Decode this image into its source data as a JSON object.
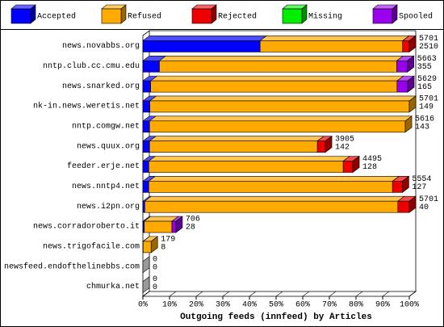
{
  "chart_data": {
    "type": "bar",
    "orientation": "horizontal",
    "stacked": true,
    "title": "Outgoing feeds (innfeed) by Articles",
    "categories": [
      "news.novabbs.org",
      "nntp.club.cc.cmu.edu",
      "news.snarked.org",
      "nk-in.news.weretis.net",
      "nntp.comgw.net",
      "news.quux.org",
      "feeder.erje.net",
      "news.nntp4.net",
      "news.i2pn.org",
      "news.corradoroberto.it",
      "news.trigofacile.com",
      "newsfeed.endofthelinebbs.com",
      "chmurka.net"
    ],
    "series": [
      {
        "name": "Accepted",
        "color": "#0000ff",
        "values": [
          44,
          6.2,
          2.9,
          2.6,
          2.5,
          2.5,
          2.2,
          2.2,
          0.7,
          0.5,
          0.1,
          0,
          0
        ]
      },
      {
        "name": "Refused",
        "color": "#ffaa00",
        "values": [
          53.5,
          89.1,
          92.5,
          97.4,
          96,
          63,
          73,
          91.5,
          95,
          10.4,
          3,
          0,
          0
        ]
      },
      {
        "name": "Rejected",
        "color": "#ee0000",
        "values": [
          2.5,
          0,
          0,
          0,
          0,
          3,
          3.6,
          3.7,
          4.3,
          0,
          0,
          0,
          0
        ]
      },
      {
        "name": "Missing",
        "color": "#00ee00",
        "values": [
          0,
          0,
          0,
          0,
          0,
          0,
          0,
          0,
          0,
          0,
          0,
          0,
          0
        ]
      },
      {
        "name": "Spooled",
        "color": "#9900ee",
        "values": [
          0,
          4,
          4,
          0,
          0,
          0,
          0,
          0,
          0,
          1.5,
          0,
          0,
          0
        ]
      }
    ],
    "offered": [
      5701,
      5663,
      5629,
      5701,
      5616,
      3905,
      4495,
      5554,
      5701,
      706,
      179,
      0,
      0
    ],
    "accepted": [
      2510,
      355,
      165,
      149,
      143,
      142,
      128,
      127,
      40,
      28,
      8,
      0,
      0
    ],
    "xlim": [
      0,
      100
    ],
    "xticks": [
      {
        "value": 0,
        "label": "0%"
      },
      {
        "value": 10,
        "label": "10%"
      },
      {
        "value": 20,
        "label": "20%"
      },
      {
        "value": 30,
        "label": "30%"
      },
      {
        "value": 40,
        "label": "40%"
      },
      {
        "value": 50,
        "label": "50%"
      },
      {
        "value": 60,
        "label": "60%"
      },
      {
        "value": 70,
        "label": "70%"
      },
      {
        "value": 80,
        "label": "80%"
      },
      {
        "value": 90,
        "label": "90%"
      },
      {
        "value": 100,
        "label": "100%"
      }
    ]
  }
}
